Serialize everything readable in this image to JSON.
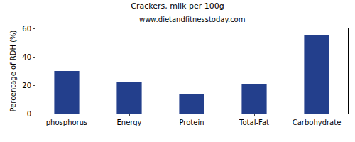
{
  "chart_data": {
    "type": "bar",
    "title": "Crackers, milk per 100g",
    "subtitle": "www.dietandfitnesstoday.com",
    "y_label": "Percentage of RDH (%)",
    "categories": [
      "phosphorus",
      "Energy",
      "Protein",
      "Total-Fat",
      "Carbohydrate"
    ],
    "values": [
      30,
      22,
      14,
      21,
      55
    ],
    "color": "#233f8c",
    "ylim": [
      0,
      60
    ],
    "yticks": [
      0,
      20,
      40,
      60
    ],
    "grid": false
  }
}
